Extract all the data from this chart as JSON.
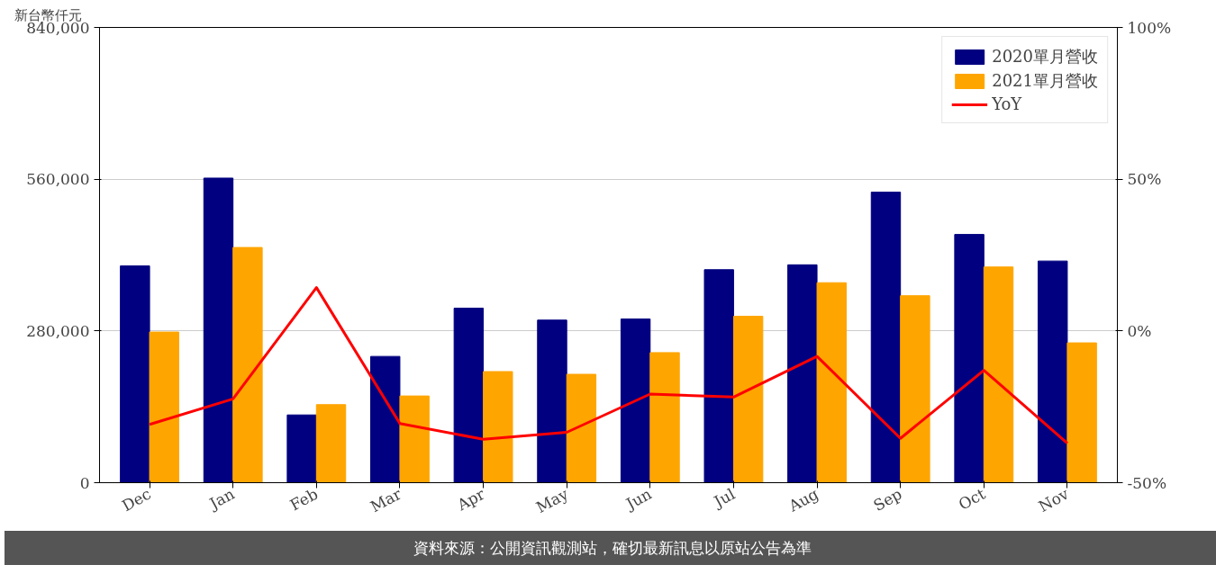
{
  "chart_data": {
    "type": "bar",
    "ylabel": "新台幣仟元",
    "categories": [
      "Dec",
      "Jan",
      "Feb",
      "Mar",
      "Apr",
      "May",
      "Jun",
      "Jul",
      "Aug",
      "Sep",
      "Oct",
      "Nov"
    ],
    "ylim": [
      0,
      840000
    ],
    "yticks": [
      0,
      {
        "value": 280000,
        "label": "280,000"
      },
      {
        "value": 560000,
        "label": "560,000"
      },
      {
        "value": 840000,
        "label": "840,000"
      }
    ],
    "y2lim": [
      -50,
      100
    ],
    "y2ticks": [
      {
        "value": -50,
        "label": "-50%"
      },
      {
        "value": 0,
        "label": "0%"
      },
      {
        "value": 50,
        "label": "50%"
      },
      {
        "value": 100,
        "label": "100%"
      }
    ],
    "grid": "y",
    "legend": "top right",
    "series": [
      {
        "name": "2020單月營收",
        "color": "#000080",
        "values": [
          400000,
          562000,
          125000,
          233000,
          322000,
          300000,
          302000,
          393000,
          402000,
          536000,
          458000,
          409000
        ]
      },
      {
        "name": "2021單月營收",
        "color": "#ffa500",
        "values": [
          278000,
          434000,
          144000,
          160000,
          205000,
          200000,
          240000,
          307000,
          369000,
          345000,
          398000,
          258000
        ]
      },
      {
        "name": "YoY",
        "type": "line",
        "axis": "y2",
        "color": "#ff0000",
        "values": [
          -30.8,
          -22.4,
          14.3,
          -30.5,
          -35.7,
          -33.4,
          -20.8,
          -21.8,
          -8.4,
          -35.4,
          -13.0,
          -37.0
        ]
      }
    ],
    "annotations": [
      "資料來源：公開資訊觀測站，確切最新訊息以原站公告為準"
    ]
  }
}
